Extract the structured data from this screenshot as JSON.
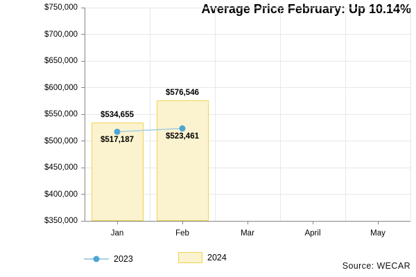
{
  "chart_data": {
    "type": "combo-bar-line",
    "title": "Average Price February: Up 10.14%",
    "categories": [
      "Jan",
      "Feb",
      "Mar",
      "April",
      "May"
    ],
    "y_axis": {
      "min": 350000,
      "max": 750000,
      "step": 50000,
      "tick_labels": [
        "$750,000",
        "$700,000",
        "$650,000",
        "$600,000",
        "$550,000",
        "$500,000",
        "$450,000",
        "$400,000",
        "$350,000"
      ]
    },
    "series": [
      {
        "name": "2023",
        "type": "line",
        "values": [
          517187,
          523461,
          null,
          null,
          null
        ],
        "point_labels": [
          "$517,187",
          "$523,461"
        ],
        "line_color": "#A8CFE0",
        "marker_color": "#4DA6D4"
      },
      {
        "name": "2024",
        "type": "bar",
        "values": [
          534655,
          576546,
          null,
          null,
          null
        ],
        "bar_labels": [
          "$534,655",
          "$576,546"
        ],
        "fill_color": "#FBF3CF",
        "border_color": "#F2D350"
      }
    ],
    "grid": true,
    "legend_position": "bottom-left",
    "source": "Source: WECAR"
  },
  "colors": {
    "grid": "#E7E7E7",
    "axis": "#848484",
    "background": "#FFFFFF",
    "text": "#000000"
  }
}
